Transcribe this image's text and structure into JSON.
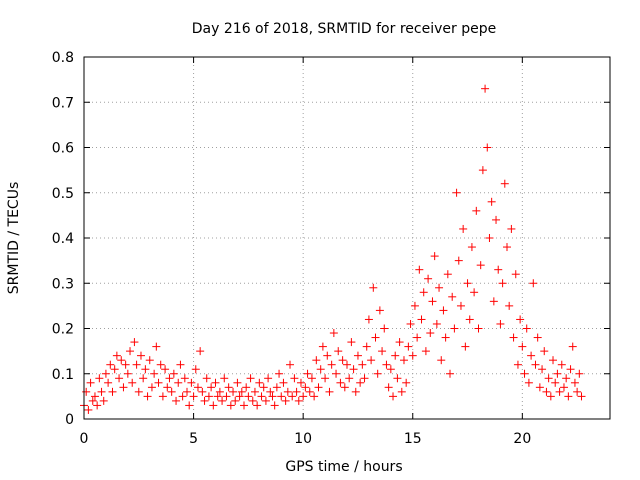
{
  "chart_data": {
    "type": "scatter",
    "title": "Day 216 of 2018, SRMTID for receiver pepe",
    "xlabel": "GPS time / hours",
    "ylabel": "SRMTID / TECUs",
    "xlim": [
      0,
      24
    ],
    "ylim": [
      0,
      0.8
    ],
    "xticks": [
      0,
      5,
      10,
      15,
      20
    ],
    "xtick_labels": [
      "0",
      "5",
      "10",
      "15",
      "20"
    ],
    "yticks": [
      0,
      0.1,
      0.2,
      0.3,
      0.4,
      0.5,
      0.6,
      0.7,
      0.8
    ],
    "ytick_labels": [
      "0",
      "0.1",
      "0.2",
      "0.3",
      "0.4",
      "0.5",
      "0.6",
      "0.7",
      "0.8"
    ],
    "grid": true,
    "marker": "+",
    "color": "#ff0000",
    "series": [
      {
        "name": "SRMTID",
        "x": [
          0.0,
          0.1,
          0.2,
          0.3,
          0.4,
          0.5,
          0.6,
          0.7,
          0.8,
          0.9,
          1.0,
          1.1,
          1.2,
          1.3,
          1.4,
          1.5,
          1.6,
          1.7,
          1.8,
          1.9,
          2.0,
          2.1,
          2.2,
          2.3,
          2.4,
          2.5,
          2.6,
          2.7,
          2.8,
          2.9,
          3.0,
          3.1,
          3.2,
          3.3,
          3.4,
          3.5,
          3.6,
          3.7,
          3.8,
          3.9,
          4.0,
          4.1,
          4.2,
          4.3,
          4.4,
          4.5,
          4.6,
          4.7,
          4.8,
          4.9,
          5.0,
          5.1,
          5.2,
          5.3,
          5.4,
          5.5,
          5.6,
          5.7,
          5.8,
          5.9,
          6.0,
          6.1,
          6.2,
          6.3,
          6.4,
          6.5,
          6.6,
          6.7,
          6.8,
          6.9,
          7.0,
          7.1,
          7.2,
          7.3,
          7.4,
          7.5,
          7.6,
          7.7,
          7.8,
          7.9,
          8.0,
          8.1,
          8.2,
          8.3,
          8.4,
          8.5,
          8.6,
          8.7,
          8.8,
          8.9,
          9.0,
          9.1,
          9.2,
          9.3,
          9.4,
          9.5,
          9.6,
          9.7,
          9.8,
          9.9,
          10.0,
          10.1,
          10.2,
          10.3,
          10.4,
          10.5,
          10.6,
          10.7,
          10.8,
          10.9,
          11.0,
          11.1,
          11.2,
          11.3,
          11.4,
          11.5,
          11.6,
          11.7,
          11.8,
          11.9,
          12.0,
          12.1,
          12.2,
          12.3,
          12.4,
          12.5,
          12.6,
          12.7,
          12.8,
          12.9,
          13.0,
          13.1,
          13.2,
          13.3,
          13.4,
          13.5,
          13.6,
          13.7,
          13.8,
          13.9,
          14.0,
          14.1,
          14.2,
          14.3,
          14.4,
          14.5,
          14.6,
          14.7,
          14.8,
          14.9,
          15.0,
          15.1,
          15.2,
          15.3,
          15.4,
          15.5,
          15.6,
          15.7,
          15.8,
          15.9,
          16.0,
          16.1,
          16.2,
          16.3,
          16.4,
          16.5,
          16.6,
          16.7,
          16.8,
          16.9,
          17.0,
          17.1,
          17.2,
          17.3,
          17.4,
          17.5,
          17.6,
          17.7,
          17.8,
          17.9,
          18.0,
          18.1,
          18.2,
          18.3,
          18.4,
          18.5,
          18.6,
          18.7,
          18.8,
          18.9,
          19.0,
          19.1,
          19.2,
          19.3,
          19.4,
          19.5,
          19.6,
          19.7,
          19.8,
          19.9,
          20.0,
          20.1,
          20.2,
          20.3,
          20.4,
          20.5,
          20.6,
          20.7,
          20.8,
          20.9,
          21.0,
          21.1,
          21.2,
          21.3,
          21.4,
          21.5,
          21.6,
          21.7,
          21.8,
          21.9,
          22.0,
          22.1,
          22.2,
          22.3,
          22.4,
          22.5,
          22.6,
          22.7
        ],
        "y": [
          0.03,
          0.06,
          0.02,
          0.08,
          0.04,
          0.05,
          0.03,
          0.09,
          0.06,
          0.04,
          0.1,
          0.08,
          0.12,
          0.06,
          0.11,
          0.14,
          0.09,
          0.13,
          0.07,
          0.12,
          0.1,
          0.15,
          0.08,
          0.17,
          0.12,
          0.06,
          0.14,
          0.09,
          0.11,
          0.05,
          0.13,
          0.07,
          0.1,
          0.16,
          0.08,
          0.12,
          0.05,
          0.11,
          0.07,
          0.09,
          0.06,
          0.1,
          0.04,
          0.08,
          0.12,
          0.05,
          0.09,
          0.06,
          0.03,
          0.08,
          0.05,
          0.11,
          0.07,
          0.15,
          0.06,
          0.04,
          0.09,
          0.05,
          0.07,
          0.03,
          0.08,
          0.05,
          0.06,
          0.04,
          0.09,
          0.05,
          0.07,
          0.03,
          0.06,
          0.04,
          0.08,
          0.05,
          0.06,
          0.03,
          0.07,
          0.05,
          0.09,
          0.04,
          0.06,
          0.03,
          0.08,
          0.05,
          0.07,
          0.04,
          0.09,
          0.06,
          0.05,
          0.03,
          0.07,
          0.1,
          0.05,
          0.08,
          0.04,
          0.06,
          0.12,
          0.05,
          0.09,
          0.06,
          0.04,
          0.08,
          0.05,
          0.07,
          0.1,
          0.06,
          0.09,
          0.05,
          0.13,
          0.07,
          0.11,
          0.16,
          0.09,
          0.14,
          0.06,
          0.12,
          0.19,
          0.1,
          0.15,
          0.08,
          0.13,
          0.07,
          0.12,
          0.09,
          0.17,
          0.11,
          0.06,
          0.14,
          0.08,
          0.12,
          0.09,
          0.16,
          0.22,
          0.13,
          0.29,
          0.18,
          0.1,
          0.24,
          0.15,
          0.2,
          0.12,
          0.07,
          0.11,
          0.05,
          0.14,
          0.09,
          0.17,
          0.06,
          0.13,
          0.08,
          0.16,
          0.21,
          0.14,
          0.25,
          0.18,
          0.33,
          0.22,
          0.28,
          0.15,
          0.31,
          0.19,
          0.26,
          0.36,
          0.21,
          0.29,
          0.13,
          0.24,
          0.18,
          0.32,
          0.1,
          0.27,
          0.2,
          0.5,
          0.35,
          0.25,
          0.42,
          0.16,
          0.3,
          0.22,
          0.38,
          0.28,
          0.46,
          0.2,
          0.34,
          0.55,
          0.73,
          0.6,
          0.4,
          0.48,
          0.26,
          0.44,
          0.33,
          0.21,
          0.3,
          0.52,
          0.38,
          0.25,
          0.42,
          0.18,
          0.32,
          0.12,
          0.22,
          0.16,
          0.1,
          0.2,
          0.08,
          0.14,
          0.3,
          0.12,
          0.18,
          0.07,
          0.11,
          0.15,
          0.06,
          0.09,
          0.05,
          0.13,
          0.08,
          0.1,
          0.06,
          0.12,
          0.07,
          0.09,
          0.05,
          0.11,
          0.16,
          0.08,
          0.06,
          0.1,
          0.05
        ]
      }
    ]
  }
}
